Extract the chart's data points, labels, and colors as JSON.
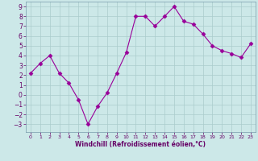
{
  "x": [
    0,
    1,
    2,
    3,
    4,
    5,
    6,
    7,
    8,
    9,
    10,
    11,
    12,
    13,
    14,
    15,
    16,
    17,
    18,
    19,
    20,
    21,
    22,
    23
  ],
  "y": [
    2.2,
    3.2,
    4.0,
    2.2,
    1.2,
    -0.5,
    -3.0,
    -1.2,
    0.2,
    2.2,
    4.3,
    8.0,
    8.0,
    7.0,
    8.0,
    9.0,
    7.5,
    7.2,
    6.2,
    5.0,
    4.5,
    4.2,
    3.8,
    5.2
  ],
  "line_color": "#990099",
  "marker": "D",
  "marker_size": 2.5,
  "bg_color": "#cce8e8",
  "grid_color": "#aacccc",
  "xlabel": "Windchill (Refroidissement éolien,°C)",
  "ylim": [
    -3.8,
    9.5
  ],
  "xlim": [
    -0.5,
    23.5
  ],
  "yticks": [
    -3,
    -2,
    -1,
    0,
    1,
    2,
    3,
    4,
    5,
    6,
    7,
    8,
    9
  ],
  "xticks": [
    0,
    1,
    2,
    3,
    4,
    5,
    6,
    7,
    8,
    9,
    10,
    11,
    12,
    13,
    14,
    15,
    16,
    17,
    18,
    19,
    20,
    21,
    22,
    23
  ]
}
